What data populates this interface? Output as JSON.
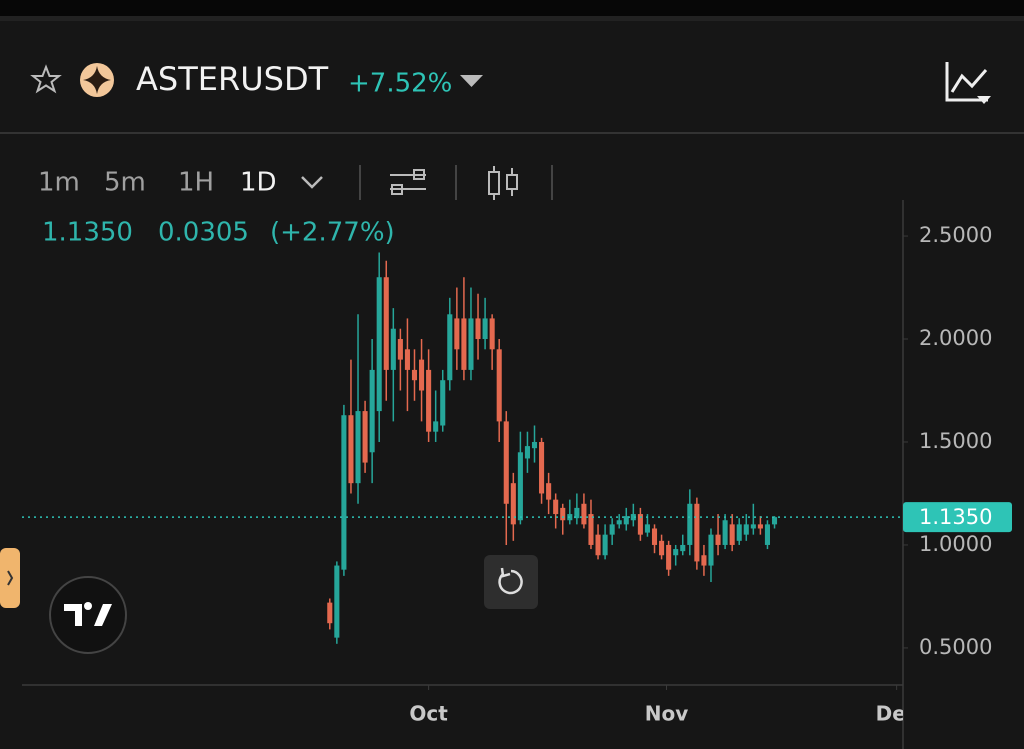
{
  "header": {
    "symbol": "ASTERUSDT",
    "change": "+7.52%"
  },
  "toolbar": {
    "intervals": [
      "1m",
      "5m",
      "1H",
      "1D"
    ]
  },
  "legend": {
    "values": [
      "1.1350",
      "0.0305",
      "(+2.77%)"
    ]
  },
  "chart_data": {
    "type": "candlestick",
    "open": [
      0.72,
      0.55,
      0.88,
      1.63,
      1.3,
      1.65,
      1.45,
      1.65,
      2.3,
      1.85,
      2.0,
      1.95,
      1.85,
      1.9,
      1.85,
      1.55,
      1.58,
      1.8,
      2.1,
      2.1,
      1.85,
      2.1,
      2.0,
      2.1,
      1.95,
      1.6,
      1.3,
      1.12,
      1.42,
      1.47,
      1.5,
      1.3,
      1.22,
      1.18,
      1.12,
      1.13,
      1.2,
      1.15,
      1.05,
      0.95,
      1.05,
      1.1,
      1.1,
      1.12,
      1.15,
      1.06,
      1.08,
      1.02,
      1.0,
      0.95,
      0.97,
      1.0,
      1.2,
      0.95,
      0.9,
      1.05,
      1.0,
      1.1,
      1.02,
      1.05,
      1.08,
      1.1,
      1.0,
      1.1
    ],
    "high": [
      0.74,
      0.92,
      1.68,
      1.9,
      2.12,
      1.7,
      2.0,
      2.42,
      2.38,
      2.15,
      2.05,
      2.1,
      1.95,
      2.0,
      1.95,
      1.75,
      1.85,
      2.2,
      2.25,
      2.3,
      2.25,
      2.22,
      2.2,
      2.12,
      2.0,
      1.65,
      1.35,
      1.55,
      1.55,
      1.58,
      1.52,
      1.35,
      1.25,
      1.2,
      1.22,
      1.25,
      1.25,
      1.22,
      1.1,
      1.1,
      1.13,
      1.15,
      1.18,
      1.2,
      1.18,
      1.15,
      1.1,
      1.05,
      1.02,
      1.0,
      1.05,
      1.27,
      1.23,
      1.0,
      1.08,
      1.15,
      1.15,
      1.15,
      1.13,
      1.15,
      1.2,
      1.14,
      1.12,
      1.14
    ],
    "low": [
      0.59,
      0.52,
      0.85,
      1.25,
      1.2,
      1.35,
      1.3,
      1.5,
      1.7,
      1.6,
      1.75,
      1.65,
      1.7,
      1.6,
      1.5,
      1.5,
      1.55,
      1.75,
      1.85,
      1.8,
      1.8,
      1.9,
      1.95,
      1.85,
      1.5,
      1.0,
      1.02,
      1.1,
      1.35,
      1.4,
      1.2,
      1.15,
      1.08,
      1.05,
      1.1,
      1.1,
      1.08,
      0.98,
      0.93,
      0.93,
      1.0,
      1.08,
      1.07,
      1.09,
      1.02,
      1.04,
      0.96,
      0.93,
      0.85,
      0.9,
      0.95,
      0.95,
      0.88,
      0.85,
      0.82,
      0.95,
      0.98,
      0.97,
      1.0,
      1.02,
      1.05,
      1.05,
      0.98,
      1.08
    ],
    "close": [
      0.62,
      0.9,
      1.63,
      1.3,
      1.65,
      1.4,
      1.85,
      2.3,
      1.85,
      2.05,
      1.9,
      1.85,
      1.8,
      1.75,
      1.55,
      1.6,
      1.8,
      2.12,
      1.95,
      1.85,
      2.1,
      2.0,
      2.1,
      1.95,
      1.6,
      1.2,
      1.1,
      1.45,
      1.48,
      1.5,
      1.25,
      1.22,
      1.15,
      1.12,
      1.15,
      1.18,
      1.1,
      1.0,
      0.95,
      1.05,
      1.1,
      1.12,
      1.14,
      1.15,
      1.05,
      1.1,
      1.0,
      0.95,
      0.88,
      0.98,
      1.0,
      1.2,
      0.92,
      0.9,
      1.05,
      1.0,
      1.12,
      1.0,
      1.1,
      1.1,
      1.1,
      1.08,
      1.1,
      1.135
    ],
    "up_color": "#26a69a",
    "down_color": "#e4694f",
    "xlim": [
      -43.6,
      81.2
    ],
    "xticks": [
      {
        "value": 14,
        "label": "Oct"
      },
      {
        "value": 47.7,
        "label": "Nov"
      },
      {
        "value": 80.3,
        "label": "Dec"
      }
    ],
    "ylim": [
      0.32,
      2.675
    ],
    "yticks": [
      {
        "value": 0.5,
        "label": "0.5000"
      },
      {
        "value": 1.0,
        "label": "1.0000"
      },
      {
        "value": 1.5,
        "label": "1.5000"
      },
      {
        "value": 2.0,
        "label": "2.0000"
      },
      {
        "value": 2.5,
        "label": "2.5000"
      }
    ],
    "last_price": {
      "value": 1.135,
      "label": "1.1350"
    },
    "price_line_color": "#2ec4b6"
  }
}
